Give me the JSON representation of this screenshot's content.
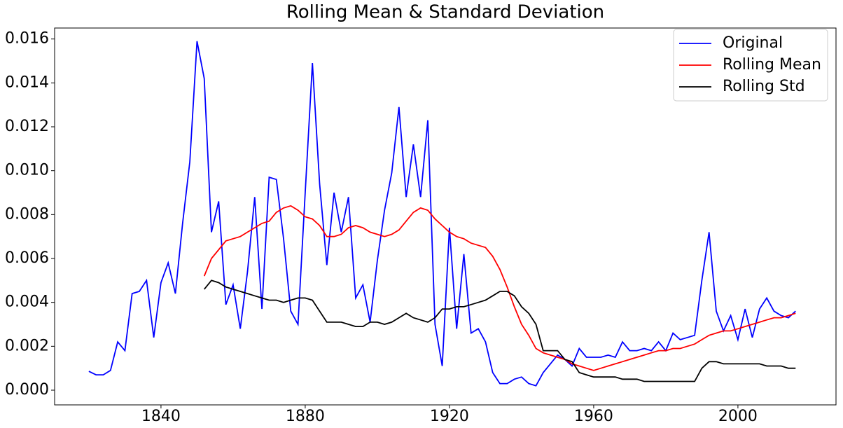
{
  "chart_data": {
    "type": "line",
    "title": "Rolling Mean & Standard Deviation",
    "x": [
      1820,
      1822,
      1824,
      1826,
      1828,
      1830,
      1832,
      1834,
      1836,
      1838,
      1840,
      1842,
      1844,
      1846,
      1848,
      1850,
      1852,
      1854,
      1856,
      1858,
      1860,
      1862,
      1864,
      1866,
      1868,
      1870,
      1872,
      1874,
      1876,
      1878,
      1880,
      1882,
      1884,
      1886,
      1888,
      1890,
      1892,
      1894,
      1896,
      1898,
      1900,
      1902,
      1904,
      1906,
      1908,
      1910,
      1912,
      1914,
      1916,
      1918,
      1920,
      1922,
      1924,
      1926,
      1928,
      1930,
      1932,
      1934,
      1936,
      1938,
      1940,
      1942,
      1944,
      1946,
      1948,
      1950,
      1952,
      1954,
      1956,
      1958,
      1960,
      1962,
      1964,
      1966,
      1968,
      1970,
      1972,
      1974,
      1976,
      1978,
      1980,
      1982,
      1984,
      1986,
      1988,
      1990,
      1992,
      1994,
      1996,
      1998,
      2000,
      2002,
      2004,
      2006,
      2008,
      2010,
      2012,
      2014,
      2016
    ],
    "series": [
      {
        "name": "Original",
        "color": "#0000ff",
        "values": [
          0.00086,
          0.0007,
          0.0007,
          0.0009,
          0.0022,
          0.0018,
          0.0044,
          0.0045,
          0.005,
          0.0024,
          0.0049,
          0.0058,
          0.0044,
          0.0076,
          0.0104,
          0.0159,
          0.0142,
          0.0072,
          0.0086,
          0.0039,
          0.0048,
          0.0028,
          0.0054,
          0.0088,
          0.0037,
          0.0097,
          0.0096,
          0.0069,
          0.0036,
          0.003,
          0.009,
          0.0149,
          0.0094,
          0.0057,
          0.009,
          0.0072,
          0.0088,
          0.0042,
          0.0048,
          0.0031,
          0.0059,
          0.0082,
          0.0099,
          0.0129,
          0.0088,
          0.0112,
          0.0088,
          0.0123,
          0.003,
          0.0011,
          0.0074,
          0.0028,
          0.0062,
          0.0026,
          0.0028,
          0.0022,
          0.0008,
          0.0003,
          0.0003,
          0.0005,
          0.0006,
          0.0003,
          0.0002,
          0.0008,
          0.0012,
          0.0016,
          0.0014,
          0.0011,
          0.0019,
          0.0015,
          0.0015,
          0.0015,
          0.0016,
          0.0015,
          0.0022,
          0.0018,
          0.0018,
          0.0019,
          0.0018,
          0.0022,
          0.0018,
          0.0026,
          0.0023,
          0.0024,
          0.0025,
          0.005,
          0.0072,
          0.0036,
          0.0027,
          0.0034,
          0.0023,
          0.0037,
          0.0024,
          0.0037,
          0.0042,
          0.0036,
          0.0034,
          0.0033,
          0.0036
        ]
      },
      {
        "name": "Rolling Mean",
        "color": "#ff0000",
        "values": [
          null,
          null,
          null,
          null,
          null,
          null,
          null,
          null,
          null,
          null,
          null,
          null,
          null,
          null,
          null,
          null,
          0.0052,
          0.006,
          0.0064,
          0.0068,
          0.0069,
          0.007,
          0.0072,
          0.0074,
          0.0076,
          0.0077,
          0.0081,
          0.0083,
          0.0084,
          0.0082,
          0.0079,
          0.0078,
          0.0075,
          0.007,
          0.007,
          0.0071,
          0.0074,
          0.0075,
          0.0074,
          0.0072,
          0.0071,
          0.007,
          0.0071,
          0.0073,
          0.0077,
          0.0081,
          0.0083,
          0.0082,
          0.0078,
          0.0075,
          0.0072,
          0.007,
          0.0069,
          0.0067,
          0.0066,
          0.0065,
          0.0061,
          0.0055,
          0.0047,
          0.0038,
          0.003,
          0.0025,
          0.0019,
          0.0017,
          0.0016,
          0.0015,
          0.0014,
          0.0012,
          0.0011,
          0.001,
          0.0009,
          0.001,
          0.0011,
          0.0012,
          0.0013,
          0.0014,
          0.0015,
          0.0016,
          0.0017,
          0.0018,
          0.0018,
          0.0019,
          0.0019,
          0.002,
          0.0021,
          0.0023,
          0.0025,
          0.0026,
          0.0027,
          0.0027,
          0.0028,
          0.0029,
          0.003,
          0.0031,
          0.0032,
          0.0033,
          0.0033,
          0.0034,
          0.0035
        ]
      },
      {
        "name": "Rolling Std",
        "color": "#000000",
        "values": [
          null,
          null,
          null,
          null,
          null,
          null,
          null,
          null,
          null,
          null,
          null,
          null,
          null,
          null,
          null,
          null,
          0.0046,
          0.005,
          0.0049,
          0.0047,
          0.0046,
          0.0045,
          0.0044,
          0.0043,
          0.0042,
          0.0041,
          0.0041,
          0.004,
          0.0041,
          0.0042,
          0.0042,
          0.0041,
          0.0036,
          0.0031,
          0.0031,
          0.0031,
          0.003,
          0.0029,
          0.0029,
          0.0031,
          0.0031,
          0.003,
          0.0031,
          0.0033,
          0.0035,
          0.0033,
          0.0032,
          0.0031,
          0.0033,
          0.0037,
          0.0037,
          0.0038,
          0.0038,
          0.0039,
          0.004,
          0.0041,
          0.0043,
          0.0045,
          0.0045,
          0.0043,
          0.0038,
          0.0035,
          0.003,
          0.0018,
          0.0018,
          0.0018,
          0.0014,
          0.0013,
          0.0008,
          0.0007,
          0.0006,
          0.0006,
          0.0006,
          0.0006,
          0.0005,
          0.0005,
          0.0005,
          0.0004,
          0.0004,
          0.0004,
          0.0004,
          0.0004,
          0.0004,
          0.0004,
          0.0004,
          0.001,
          0.0013,
          0.0013,
          0.0012,
          0.0012,
          0.0012,
          0.0012,
          0.0012,
          0.0012,
          0.0011,
          0.0011,
          0.0011,
          0.001,
          0.001
        ]
      }
    ],
    "xlim": [
      1810.5,
      2027.2
    ],
    "ylim": [
      -0.00067,
      0.0165
    ],
    "xticks": [
      1840,
      1880,
      1920,
      1960,
      2000
    ],
    "yticks": [
      {
        "value": 0,
        "label": "0.000"
      },
      0.002,
      0.004,
      0.006,
      0.008,
      {
        "value": 0.01,
        "label": "0.010"
      },
      0.012,
      0.014,
      0.016
    ],
    "legend": "upper right"
  }
}
